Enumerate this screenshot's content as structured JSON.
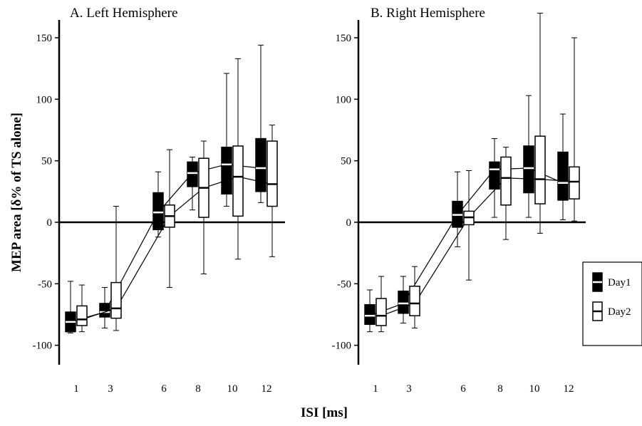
{
  "chart_data": {
    "type": "box",
    "xlabel": "ISI  [ms]",
    "ylabel": "MEP area [δ% of TS alone]",
    "ylim": [
      -118,
      165
    ],
    "yticks": [
      150,
      100,
      50,
      0,
      -50,
      -100
    ],
    "categories": [
      "1",
      "3",
      "6",
      "8",
      "10",
      "12"
    ],
    "x": [
      1,
      3,
      6,
      8,
      10,
      12
    ],
    "legend": {
      "position": "right",
      "items": [
        {
          "label": "Day1",
          "fill": "#000000",
          "median_color": "#ffffff"
        },
        {
          "label": "Day2",
          "fill": "#ffffff",
          "median_color": "#000000"
        }
      ]
    },
    "panels": [
      {
        "title": "A. Left Hemisphere",
        "series": [
          {
            "name": "Day1",
            "boxes": [
              {
                "x": 1,
                "min": -90,
                "q1": -89,
                "median": -81,
                "q3": -73,
                "max": -48
              },
              {
                "x": 3,
                "min": -86,
                "q1": -77,
                "median": -73,
                "q3": -66,
                "max": -53
              },
              {
                "x": 6,
                "min": -12,
                "q1": -6,
                "median": 8,
                "q3": 24,
                "max": 41
              },
              {
                "x": 8,
                "min": 10,
                "q1": 29,
                "median": 40,
                "q3": 49,
                "max": 53
              },
              {
                "x": 10,
                "min": 13,
                "q1": 23,
                "median": 47,
                "q3": 61,
                "max": 121
              },
              {
                "x": 12,
                "min": 16,
                "q1": 25,
                "median": 44,
                "q3": 68,
                "max": 144
              }
            ]
          },
          {
            "name": "Day2",
            "boxes": [
              {
                "x": 1,
                "min": -89,
                "q1": -84,
                "median": -79,
                "q3": -68,
                "max": -51
              },
              {
                "x": 3,
                "min": -88,
                "q1": -78,
                "median": -70,
                "q3": -49,
                "max": 13
              },
              {
                "x": 6,
                "min": -53,
                "q1": -4,
                "median": 5,
                "q3": 14,
                "max": 59
              },
              {
                "x": 8,
                "min": -42,
                "q1": 4,
                "median": 28,
                "q3": 52,
                "max": 66
              },
              {
                "x": 10,
                "min": -30,
                "q1": 5,
                "median": 37,
                "q3": 62,
                "max": 133
              },
              {
                "x": 12,
                "min": -28,
                "q1": 13,
                "median": 31,
                "q3": 66,
                "max": 79
              }
            ]
          }
        ]
      },
      {
        "title": "B. Right Hemisphere",
        "series": [
          {
            "name": "Day1",
            "boxes": [
              {
                "x": 1,
                "min": -89,
                "q1": -83,
                "median": -76,
                "q3": -67,
                "max": -55
              },
              {
                "x": 3,
                "min": -82,
                "q1": -74,
                "median": -66,
                "q3": -56,
                "max": -44
              },
              {
                "x": 6,
                "min": -20,
                "q1": -4,
                "median": 6,
                "q3": 17,
                "max": 41
              },
              {
                "x": 8,
                "min": 4,
                "q1": 27,
                "median": 43,
                "q3": 49,
                "max": 68
              },
              {
                "x": 10,
                "min": 4,
                "q1": 24,
                "median": 44,
                "q3": 62,
                "max": 103
              },
              {
                "x": 12,
                "min": 2,
                "q1": 18,
                "median": 32,
                "q3": 57,
                "max": 88
              }
            ]
          },
          {
            "name": "Day2",
            "boxes": [
              {
                "x": 1,
                "min": -89,
                "q1": -84,
                "median": -76,
                "q3": -62,
                "max": -44
              },
              {
                "x": 3,
                "min": -86,
                "q1": -76,
                "median": -66,
                "q3": -52,
                "max": -36
              },
              {
                "x": 6,
                "min": -47,
                "q1": -2,
                "median": 4,
                "q3": 9,
                "max": 42
              },
              {
                "x": 8,
                "min": -14,
                "q1": 14,
                "median": 36,
                "q3": 53,
                "max": 61
              },
              {
                "x": 10,
                "min": -9,
                "q1": 15,
                "median": 35,
                "q3": 70,
                "max": 170
              },
              {
                "x": 12,
                "min": 1,
                "q1": 19,
                "median": 33,
                "q3": 45,
                "max": 150
              }
            ]
          }
        ]
      }
    ]
  }
}
